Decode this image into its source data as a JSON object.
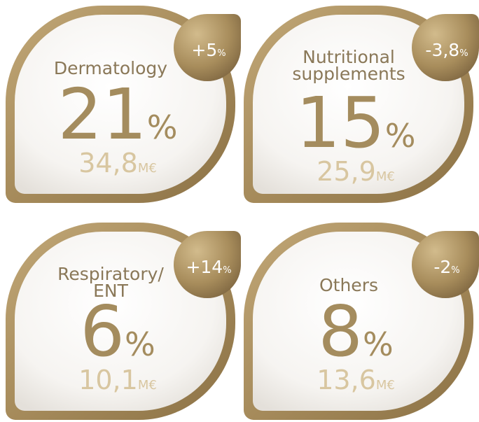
{
  "cards": [
    {
      "label": [
        "Dermatology"
      ],
      "share": "21",
      "share_unit": "%",
      "amount": "34,8",
      "amount_unit": "M€",
      "change": "+5",
      "change_unit": "%"
    },
    {
      "label": [
        "Nutritional",
        "supplements"
      ],
      "share": "15",
      "share_unit": "%",
      "amount": "25,9",
      "amount_unit": "M€",
      "change": "-3,8",
      "change_unit": "%"
    },
    {
      "label": [
        "Respiratory/",
        "ENT"
      ],
      "share": "6",
      "share_unit": "%",
      "amount": "10,1",
      "amount_unit": "M€",
      "change": "+14",
      "change_unit": "%"
    },
    {
      "label": [
        "Others"
      ],
      "share": "8",
      "share_unit": "%",
      "amount": "13,6",
      "amount_unit": "M€",
      "change": "-2",
      "change_unit": "%"
    }
  ]
}
